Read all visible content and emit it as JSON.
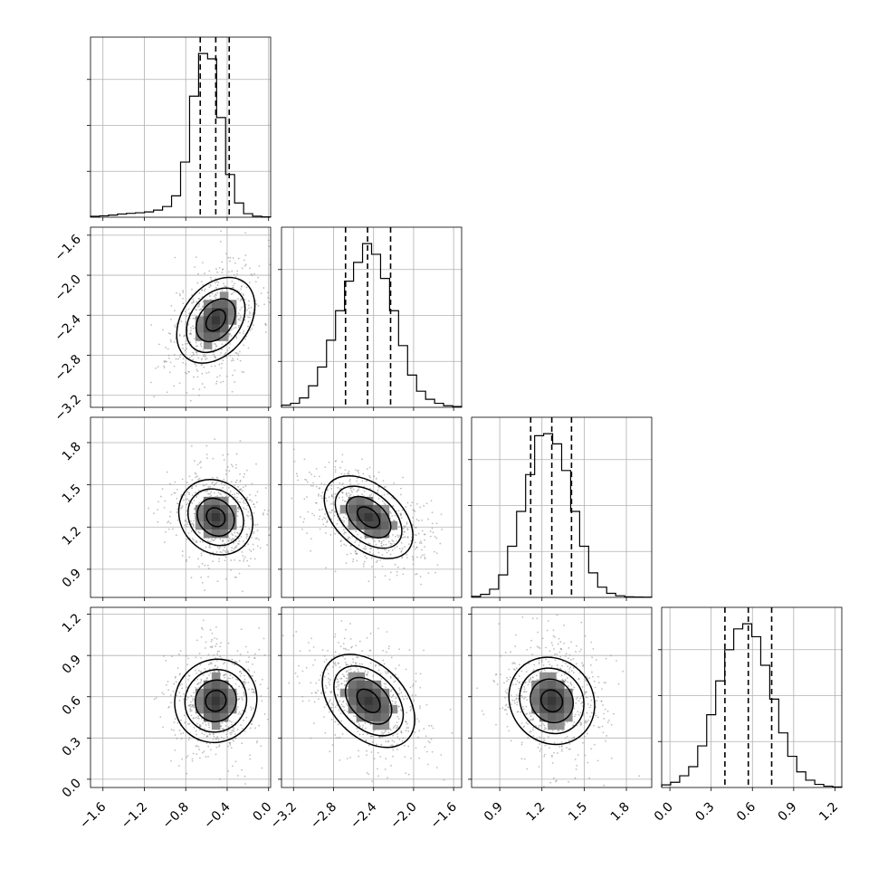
{
  "chart_data": {
    "type": "corner",
    "parameters": [
      {
        "index": 0,
        "mean": -0.51,
        "sd": 0.17,
        "range": [
          -1.72,
          0.02
        ],
        "ticks": [
          "−1.6",
          "−1.2",
          "−0.8",
          "−0.4",
          "0.0"
        ],
        "tick_values": [
          -1.6,
          -1.2,
          -0.8,
          -0.4,
          0.0
        ],
        "quantiles": [
          -0.66,
          -0.51,
          -0.38
        ],
        "hist": {
          "edges": [
            -1.72,
            -1.633,
            -1.546,
            -1.459,
            -1.372,
            -1.285,
            -1.198,
            -1.111,
            -1.024,
            -0.937,
            -0.85,
            -0.763,
            -0.676,
            -0.589,
            -0.502,
            -0.415,
            -0.328,
            -0.241,
            -0.154,
            -0.067,
            0.02
          ],
          "counts": [
            5,
            8,
            12,
            18,
            22,
            25,
            30,
            40,
            60,
            120,
            310,
            680,
            920,
            890,
            560,
            240,
            80,
            20,
            6,
            2
          ]
        }
      },
      {
        "index": 1,
        "mean": -2.45,
        "sd": 0.23,
        "range": [
          -3.32,
          -1.52
        ],
        "ticks": [
          "−3.2",
          "−2.8",
          "−2.4",
          "−2.0",
          "−1.6"
        ],
        "tick_values": [
          -3.2,
          -2.8,
          -2.4,
          -2.0,
          -1.6
        ],
        "quantiles": [
          -2.68,
          -2.46,
          -2.23
        ],
        "hist": {
          "edges": [
            -3.32,
            -3.23,
            -3.14,
            -3.05,
            -2.96,
            -2.87,
            -2.78,
            -2.69,
            -2.6,
            -2.51,
            -2.42,
            -2.33,
            -2.24,
            -2.15,
            -2.06,
            -1.97,
            -1.88,
            -1.79,
            -1.7,
            -1.61,
            -1.52
          ],
          "counts": [
            8,
            15,
            35,
            80,
            150,
            250,
            360,
            470,
            540,
            610,
            570,
            480,
            360,
            230,
            120,
            60,
            30,
            15,
            6,
            3
          ]
        }
      },
      {
        "index": 2,
        "mean": 1.27,
        "sd": 0.14,
        "range": [
          0.7,
          1.98
        ],
        "ticks": [
          "0.9",
          "1.2",
          "1.5",
          "1.8"
        ],
        "tick_values": [
          0.9,
          1.2,
          1.5,
          1.8
        ],
        "quantiles": [
          1.12,
          1.27,
          1.41
        ],
        "hist": {
          "edges": [
            0.7,
            0.764,
            0.828,
            0.892,
            0.956,
            1.02,
            1.084,
            1.148,
            1.212,
            1.276,
            1.34,
            1.404,
            1.468,
            1.532,
            1.596,
            1.66,
            1.724,
            1.788,
            1.852,
            1.916,
            1.98
          ],
          "counts": [
            5,
            15,
            40,
            110,
            250,
            420,
            600,
            790,
            800,
            750,
            620,
            420,
            250,
            120,
            50,
            20,
            8,
            3,
            2,
            1
          ]
        }
      },
      {
        "index": 3,
        "mean": 0.57,
        "sd": 0.17,
        "range": [
          -0.06,
          1.25
        ],
        "ticks": [
          "0.0",
          "0.3",
          "0.6",
          "0.9",
          "1.2"
        ],
        "tick_values": [
          0.0,
          0.3,
          0.6,
          0.9,
          1.2
        ],
        "quantiles": [
          0.4,
          0.57,
          0.74
        ],
        "hist": {
          "edges": [
            -0.06,
            0.0055,
            0.071,
            0.1365,
            0.202,
            0.2675,
            0.333,
            0.3985,
            0.464,
            0.5295,
            0.595,
            0.6605,
            0.726,
            0.7915,
            0.857,
            0.9225,
            0.988,
            1.0535,
            1.119,
            1.1845,
            1.25
          ],
          "counts": [
            10,
            20,
            45,
            80,
            160,
            280,
            410,
            530,
            610,
            630,
            580,
            470,
            340,
            210,
            120,
            60,
            28,
            12,
            5,
            2
          ]
        }
      }
    ],
    "pairs": [
      {
        "row": 1,
        "col": 0,
        "corr": 0.35,
        "scatter_count": 650,
        "seed": 11
      },
      {
        "row": 2,
        "col": 0,
        "corr": -0.15,
        "scatter_count": 650,
        "seed": 23
      },
      {
        "row": 2,
        "col": 1,
        "corr": -0.45,
        "scatter_count": 700,
        "seed": 37
      },
      {
        "row": 3,
        "col": 0,
        "corr": 0.05,
        "scatter_count": 650,
        "seed": 41
      },
      {
        "row": 3,
        "col": 1,
        "corr": -0.4,
        "scatter_count": 700,
        "seed": 53
      },
      {
        "row": 3,
        "col": 2,
        "corr": -0.1,
        "scatter_count": 650,
        "seed": 67
      }
    ],
    "contour_levels_sigma": [
      0.5,
      1.0,
      1.5,
      2.0
    ],
    "density_grayscale": true,
    "grid": true,
    "quantile_lines": "dashed",
    "colors": {
      "line": "#000000",
      "grid": "#b0b0b0",
      "scatter": "#8a8a8a",
      "density_dark": "#000000"
    }
  }
}
